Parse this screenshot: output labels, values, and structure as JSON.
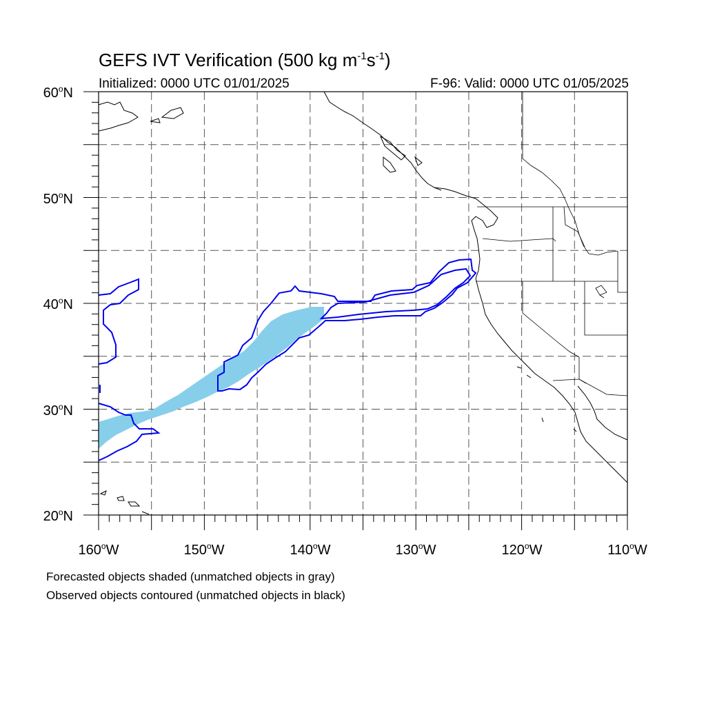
{
  "header": {
    "title_main": "GEFS IVT Verification (500 kg m",
    "title_sup1": "-1",
    "title_mid": "s",
    "title_sup2": "-1",
    "title_end": ")",
    "initialized": "Initialized: 0000 UTC 01/01/2025",
    "valid": "F-96: Valid: 0000 UTC 01/05/2025"
  },
  "axes": {
    "lat_labels": [
      {
        "num": "60",
        "deg": "o",
        "hem": "N"
      },
      {
        "num": "50",
        "deg": "o",
        "hem": "N"
      },
      {
        "num": "40",
        "deg": "o",
        "hem": "N"
      },
      {
        "num": "30",
        "deg": "o",
        "hem": "N"
      },
      {
        "num": "20",
        "deg": "o",
        "hem": "N"
      }
    ],
    "lon_labels": [
      {
        "num": "160",
        "deg": "o",
        "hem": "W"
      },
      {
        "num": "150",
        "deg": "o",
        "hem": "W"
      },
      {
        "num": "140",
        "deg": "o",
        "hem": "W"
      },
      {
        "num": "130",
        "deg": "o",
        "hem": "W"
      },
      {
        "num": "120",
        "deg": "o",
        "hem": "W"
      },
      {
        "num": "110",
        "deg": "o",
        "hem": "W"
      }
    ],
    "lat_range": [
      20,
      60
    ],
    "lon_range": [
      -160,
      -110
    ],
    "grid": "dashed every 5 degrees"
  },
  "legend": {
    "line1": "Forecasted objects shaded (unmatched objects in gray)",
    "line2": "Observed objects contoured (unmatched objects in black)"
  },
  "colors": {
    "forecast_fill": "#87ceeb",
    "observed_contour": "#0000ee",
    "coastline": "#000000",
    "grid": "#555555"
  }
}
